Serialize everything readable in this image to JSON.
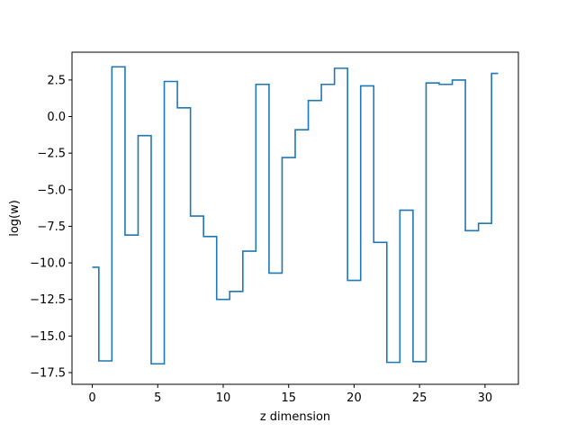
{
  "chart_data": {
    "type": "line",
    "drawstyle": "steps-mid",
    "title": "",
    "xlabel": "z dimension",
    "ylabel": "log(w)",
    "xlim": [
      -1.55,
      32.55
    ],
    "ylim": [
      -18.3,
      4.4
    ],
    "xticks": [
      0,
      5,
      10,
      15,
      20,
      25,
      30
    ],
    "xtick_labels": [
      "0",
      "5",
      "10",
      "15",
      "20",
      "25",
      "30"
    ],
    "yticks": [
      -17.5,
      -15.0,
      -12.5,
      -10.0,
      -7.5,
      -5.0,
      -2.5,
      0.0,
      2.5
    ],
    "ytick_labels": [
      "−17.5",
      "−15.0",
      "−12.5",
      "−10.0",
      "−7.5",
      "−5.0",
      "−2.5",
      "0.0",
      "2.5"
    ],
    "grid": false,
    "series": [
      {
        "color": "#1f77b4",
        "x": [
          0,
          1,
          2,
          3,
          4,
          5,
          6,
          7,
          8,
          9,
          10,
          11,
          12,
          13,
          14,
          15,
          16,
          17,
          18,
          19,
          20,
          21,
          22,
          23,
          24,
          25,
          26,
          27,
          28,
          29,
          30,
          31
        ],
        "y": [
          -10.3,
          -16.7,
          3.4,
          -8.1,
          -1.3,
          -16.9,
          2.4,
          0.6,
          -6.8,
          -8.2,
          -12.5,
          -11.95,
          -9.2,
          2.2,
          -10.7,
          -2.8,
          -0.9,
          1.1,
          2.2,
          3.3,
          -11.2,
          2.1,
          -8.6,
          -16.8,
          -6.4,
          -16.75,
          2.3,
          2.2,
          2.5,
          -7.8,
          -7.3,
          2.95
        ]
      }
    ]
  }
}
